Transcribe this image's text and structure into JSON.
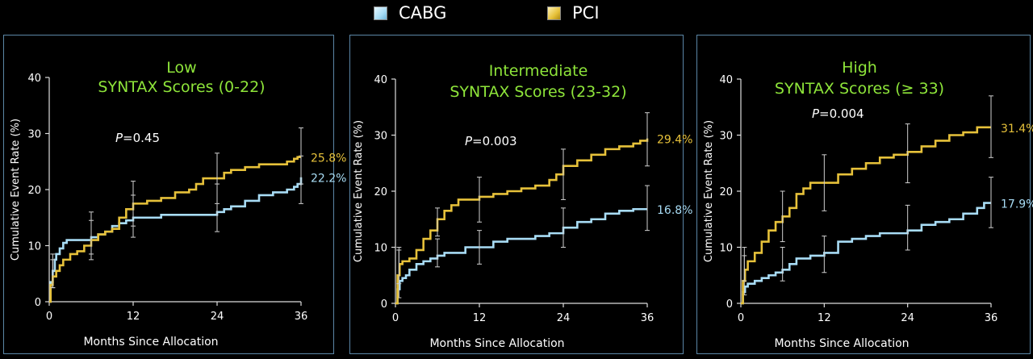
{
  "legend": [
    {
      "label": "CABG",
      "color": "#a8dcf5"
    },
    {
      "label": "PCI",
      "color": "#e6c13a"
    }
  ],
  "chart_data": [
    {
      "type": "line",
      "title_line1": "Low",
      "title_line2": "SYNTAX Scores (0-22)",
      "p_prefix": "P",
      "p_value": "=0.45",
      "xlabel": "Months Since Allocation",
      "ylabel": "Cumulative Event Rate (%)",
      "xlim": [
        0,
        36
      ],
      "ylim": [
        0,
        40
      ],
      "xticks": [
        "0",
        "12",
        "24",
        "36"
      ],
      "yticks": [
        "0",
        "10",
        "20",
        "30",
        "40"
      ],
      "series": [
        {
          "name": "CABG",
          "color": "#a8dcf5",
          "end_label": "22.2%",
          "x": [
            0,
            0.2,
            0.5,
            0.8,
            1.0,
            1.5,
            2,
            2.5,
            3,
            4,
            5,
            6,
            7,
            8,
            9,
            10,
            11,
            12,
            14,
            16,
            18,
            20,
            22,
            24,
            25,
            26,
            28,
            30,
            32,
            34,
            35,
            35.5,
            36
          ],
          "y": [
            0,
            3.5,
            5.5,
            7.5,
            8.5,
            9.5,
            10.5,
            11,
            11,
            11,
            11,
            11.5,
            12,
            12.5,
            13.5,
            14,
            14.5,
            15,
            15,
            15.5,
            15.5,
            15.5,
            15.5,
            16,
            16.5,
            17,
            18,
            19,
            19.5,
            20,
            20.5,
            21,
            22.2
          ],
          "errors": [
            {
              "x": 0.5,
              "lo": 2.5,
              "hi": 8.5
            },
            {
              "x": 6,
              "lo": 8.5,
              "hi": 14.5
            },
            {
              "x": 12,
              "lo": 11.5,
              "hi": 19
            },
            {
              "x": 24,
              "lo": 12.5,
              "hi": 21
            },
            {
              "x": 36,
              "lo": 17.5,
              "hi": 26
            }
          ]
        },
        {
          "name": "PCI",
          "color": "#e6c13a",
          "end_label": "25.8%",
          "x": [
            0,
            0.2,
            0.5,
            1,
            1.5,
            2,
            3,
            4,
            5,
            6,
            7,
            8,
            9,
            10,
            11,
            12,
            14,
            16,
            18,
            20,
            21,
            22,
            24,
            25,
            26,
            28,
            30,
            32,
            34,
            35,
            35.5,
            36
          ],
          "y": [
            0,
            3,
            4.5,
            5.5,
            6.5,
            7.5,
            8.5,
            9,
            10,
            11,
            12,
            12.5,
            13,
            15,
            16.5,
            17.5,
            18,
            18.5,
            19.5,
            20,
            21,
            22,
            22,
            23,
            23.5,
            24,
            24.5,
            24.5,
            25,
            25.5,
            25.8,
            25.8
          ],
          "errors": [
            {
              "x": 0.5,
              "lo": 2.5,
              "hi": 7.5
            },
            {
              "x": 6,
              "lo": 7.5,
              "hi": 16
            },
            {
              "x": 12,
              "lo": 13.5,
              "hi": 21.5
            },
            {
              "x": 24,
              "lo": 17.5,
              "hi": 26.5
            },
            {
              "x": 36,
              "lo": 21,
              "hi": 31
            }
          ]
        }
      ]
    },
    {
      "type": "line",
      "title_line1": "Intermediate",
      "title_line2": "SYNTAX Scores (23-32)",
      "p_prefix": "P",
      "p_value": "=0.003",
      "xlabel": "Months Since Allocation",
      "ylabel": "Cumulative Event Rate (%)",
      "xlim": [
        0,
        36
      ],
      "ylim": [
        0,
        40
      ],
      "xticks": [
        "0",
        "12",
        "24",
        "36"
      ],
      "yticks": [
        "0",
        "10",
        "20",
        "30",
        "40"
      ],
      "series": [
        {
          "name": "CABG",
          "color": "#a8dcf5",
          "end_label": "16.8%",
          "x": [
            0,
            0.3,
            0.6,
            1,
            1.5,
            2,
            3,
            4,
            5,
            6,
            7,
            8,
            10,
            12,
            14,
            16,
            18,
            20,
            22,
            24,
            26,
            28,
            30,
            32,
            34,
            36
          ],
          "y": [
            0,
            2.5,
            4,
            4.5,
            5,
            6,
            7,
            7.5,
            8,
            8.5,
            9,
            9,
            10,
            10,
            11,
            11.5,
            11.5,
            12,
            12.5,
            13.5,
            14.5,
            15,
            16,
            16.5,
            16.8,
            16.8
          ],
          "errors": [
            {
              "x": 0.5,
              "lo": 1,
              "hi": 9.5
            },
            {
              "x": 6,
              "lo": 6.5,
              "hi": 11.5
            },
            {
              "x": 12,
              "lo": 7,
              "hi": 13
            },
            {
              "x": 24,
              "lo": 10,
              "hi": 17
            },
            {
              "x": 36,
              "lo": 13,
              "hi": 21
            }
          ]
        },
        {
          "name": "PCI",
          "color": "#e6c13a",
          "end_label": "29.4%",
          "x": [
            0,
            0.3,
            0.6,
            1,
            2,
            3,
            4,
            5,
            6,
            7,
            8,
            9,
            10,
            12,
            14,
            16,
            18,
            20,
            22,
            23,
            24,
            26,
            28,
            30,
            32,
            34,
            35,
            36
          ],
          "y": [
            0,
            5,
            7,
            7.5,
            8,
            9.5,
            11.5,
            13,
            15,
            16.5,
            17.5,
            18.5,
            18.5,
            19,
            19.5,
            20,
            20.5,
            21,
            22,
            23,
            24.5,
            25.5,
            26.5,
            27.5,
            28,
            28.5,
            29,
            29.4
          ],
          "errors": [
            {
              "x": 0.5,
              "lo": 3.5,
              "hi": 10
            },
            {
              "x": 6,
              "lo": 12,
              "hi": 17
            },
            {
              "x": 12,
              "lo": 14.5,
              "hi": 22.5
            },
            {
              "x": 24,
              "lo": 18.5,
              "hi": 27.5
            },
            {
              "x": 36,
              "lo": 24.5,
              "hi": 34
            }
          ]
        }
      ]
    },
    {
      "type": "line",
      "title_line1": "High",
      "title_line2": "SYNTAX Scores (≥ 33)",
      "p_prefix": "P",
      "p_value": "=0.004",
      "xlabel": "Months Since Allocation",
      "ylabel": "Cumulative Event Rate (%)",
      "xlim": [
        0,
        36
      ],
      "ylim": [
        0,
        40
      ],
      "xticks": [
        "0",
        "12",
        "24",
        "36"
      ],
      "yticks": [
        "0",
        "10",
        "20",
        "30",
        "40"
      ],
      "series": [
        {
          "name": "CABG",
          "color": "#a8dcf5",
          "end_label": "17.9%",
          "x": [
            0,
            0.3,
            0.6,
            1,
            2,
            3,
            4,
            5,
            6,
            7,
            8,
            10,
            12,
            14,
            16,
            18,
            20,
            22,
            24,
            26,
            28,
            30,
            32,
            34,
            35,
            36
          ],
          "y": [
            0,
            2,
            3,
            3.5,
            4,
            4.5,
            5,
            5.5,
            6,
            7,
            8,
            8.5,
            9,
            11,
            11.5,
            12,
            12.5,
            12.5,
            13,
            14,
            14.5,
            15,
            16,
            17,
            17.9,
            17.9
          ],
          "errors": [
            {
              "x": 0.5,
              "lo": 1.5,
              "hi": 8.5
            },
            {
              "x": 6,
              "lo": 4,
              "hi": 10
            },
            {
              "x": 12,
              "lo": 5.5,
              "hi": 12
            },
            {
              "x": 24,
              "lo": 9.5,
              "hi": 17.5
            },
            {
              "x": 36,
              "lo": 13.5,
              "hi": 22.5
            }
          ]
        },
        {
          "name": "PCI",
          "color": "#e6c13a",
          "end_label": "31.4%",
          "x": [
            0,
            0.3,
            0.6,
            1,
            2,
            3,
            4,
            5,
            6,
            7,
            8,
            9,
            10,
            12,
            14,
            16,
            18,
            20,
            22,
            24,
            26,
            28,
            30,
            32,
            34,
            36
          ],
          "y": [
            0,
            4,
            6,
            7.5,
            9,
            11,
            13,
            14.5,
            15.5,
            17,
            19.5,
            20.5,
            21.5,
            21.5,
            23,
            24,
            25,
            26,
            26.5,
            27,
            28,
            29,
            30,
            30.5,
            31.4,
            31.4
          ],
          "errors": [
            {
              "x": 0.5,
              "lo": 4,
              "hi": 10
            },
            {
              "x": 6,
              "lo": 11,
              "hi": 20
            },
            {
              "x": 12,
              "lo": 16.5,
              "hi": 26.5
            },
            {
              "x": 24,
              "lo": 21.5,
              "hi": 32
            },
            {
              "x": 36,
              "lo": 26,
              "hi": 37
            }
          ]
        }
      ]
    }
  ]
}
